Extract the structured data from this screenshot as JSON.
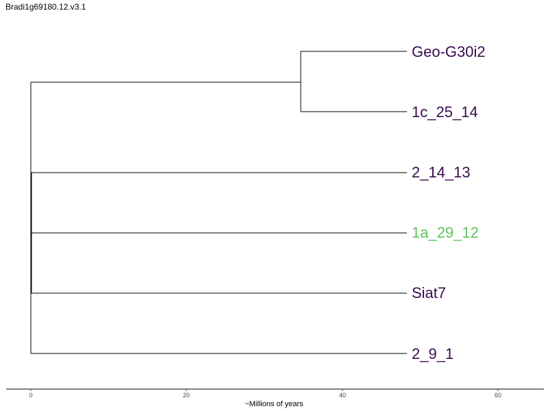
{
  "title": "Bradi1g69180.12.v3.1",
  "axis": {
    "label": "~Millions of years",
    "ticks": [
      "0",
      "20",
      "40",
      "60"
    ]
  },
  "leaves": [
    {
      "label": "Geo-G30i2",
      "color": "#3b0a4f"
    },
    {
      "label": "1c_25_14",
      "color": "#3b0a4f"
    },
    {
      "label": "2_14_13",
      "color": "#3b0a4f"
    },
    {
      "label": "1a_29_12",
      "color": "#5cc45c"
    },
    {
      "label": "Siat7",
      "color": "#3b0a4f"
    },
    {
      "label": "2_9_1",
      "color": "#3b0a4f"
    }
  ]
}
